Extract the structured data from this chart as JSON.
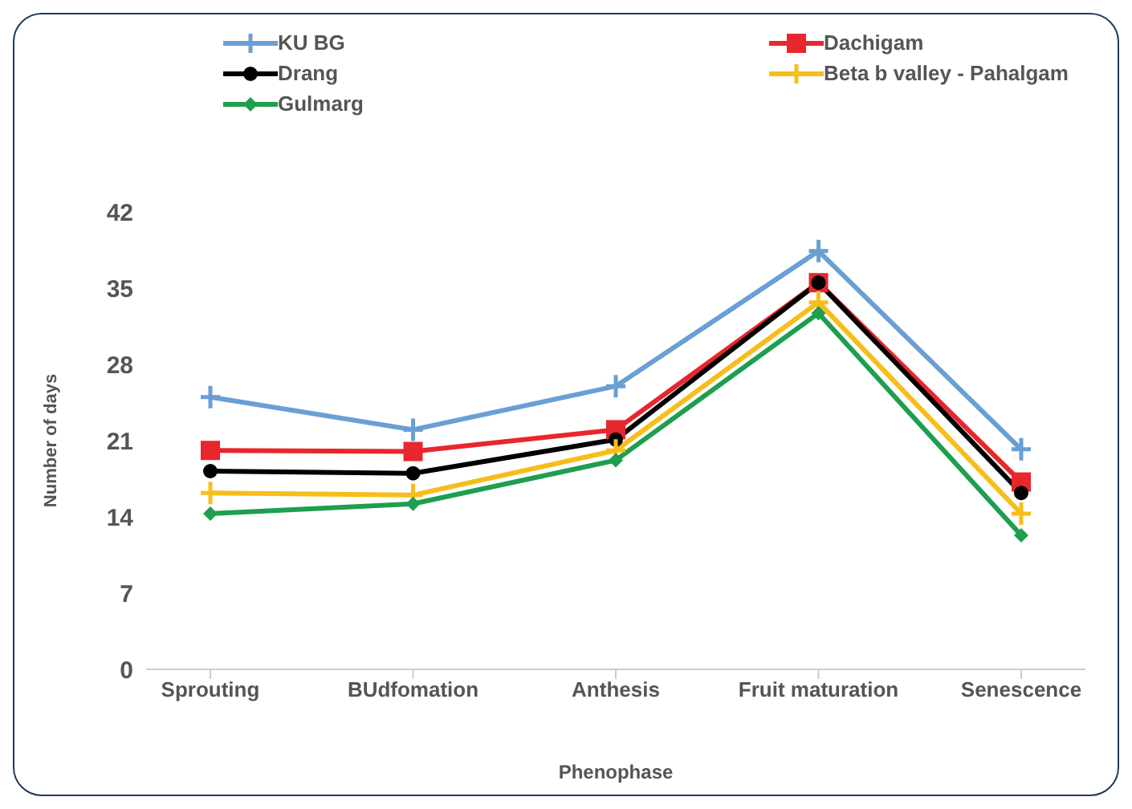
{
  "chart_data": {
    "type": "line",
    "xlabel": "Phenophase",
    "ylabel": "Number of days",
    "categories": [
      "Sprouting",
      "BUdfomation",
      "Anthesis",
      "Fruit maturation",
      "Senescence"
    ],
    "series": [
      {
        "name": "KU BG",
        "color": "#6a9fd4",
        "marker": "cross",
        "values": [
          25,
          22,
          26,
          38.4,
          20.2
        ]
      },
      {
        "name": "Dachigam",
        "color": "#e8262d",
        "marker": "square",
        "values": [
          20.1,
          20,
          22,
          35.5,
          17.2
        ]
      },
      {
        "name": "Drang",
        "color": "#000000",
        "marker": "circle",
        "values": [
          18.2,
          18,
          21.1,
          35.5,
          16.2
        ]
      },
      {
        "name": "Beta b valley - Pahalgam",
        "color": "#f7bd1a",
        "marker": "cross",
        "values": [
          16.2,
          16,
          20.1,
          33.7,
          14.3
        ]
      },
      {
        "name": "Gulmarg",
        "color": "#1e9e4f",
        "marker": "diamond",
        "values": [
          14.3,
          15.2,
          19.2,
          32.7,
          12.3
        ]
      }
    ],
    "ylim": [
      0,
      42
    ],
    "yticks": [
      0,
      7,
      14,
      21,
      28,
      35,
      42
    ],
    "grid": false,
    "legend": "top",
    "line_style": "solid"
  }
}
